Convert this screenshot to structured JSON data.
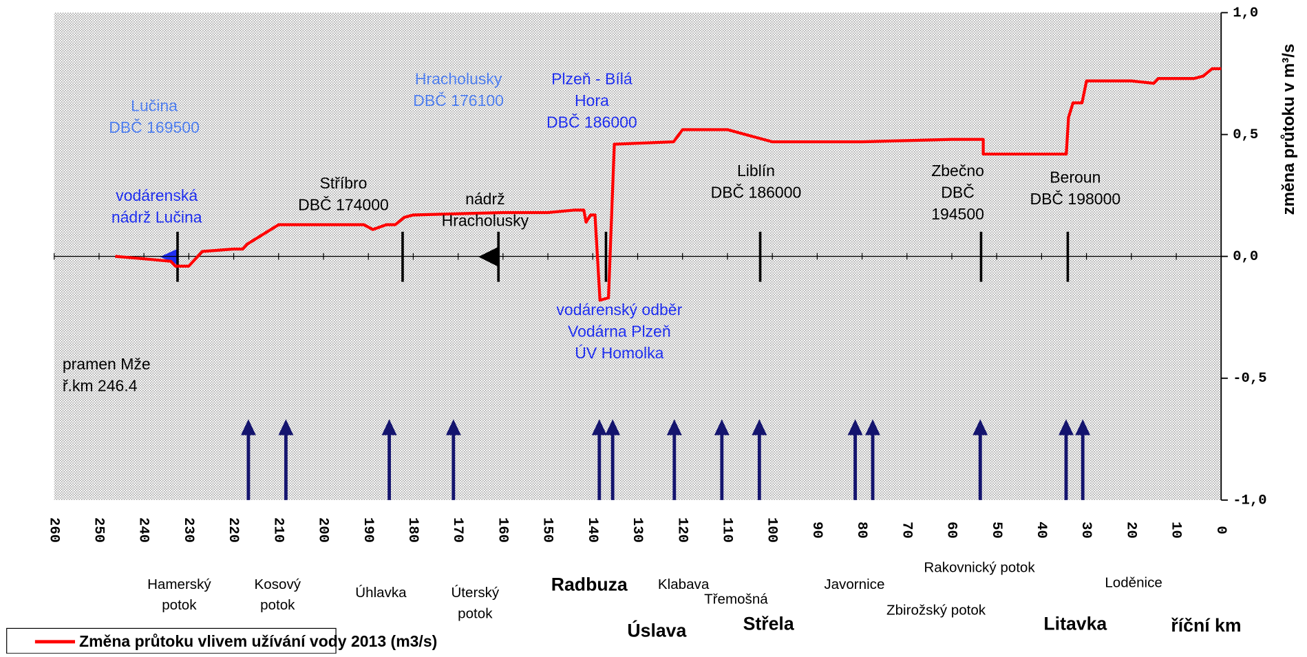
{
  "chart_data": {
    "type": "line",
    "x_label": "říční km",
    "y_label": "změna průtoku v m³/s",
    "xlim": [
      260,
      0
    ],
    "xticks": [
      260,
      250,
      240,
      230,
      220,
      210,
      200,
      190,
      180,
      170,
      160,
      150,
      140,
      130,
      120,
      110,
      100,
      90,
      80,
      70,
      60,
      50,
      40,
      30,
      20,
      10,
      0
    ],
    "ylim": [
      -1,
      1
    ],
    "yticks": [
      {
        "value": 1,
        "label": "1,0"
      },
      {
        "value": 0.5,
        "label": "0,5"
      },
      {
        "value": 0,
        "label": "0,0"
      },
      {
        "value": -0.5,
        "label": "-0,5"
      },
      {
        "value": -1,
        "label": "-1,0"
      }
    ],
    "series": [
      {
        "name": "Změna průtoku vlivem užívání vody 2013 (m3/s)",
        "color": "#ff0000",
        "x": [
          246.4,
          240,
          234,
          233,
          230,
          227,
          220,
          218,
          217,
          210,
          200,
          191,
          189,
          186,
          184,
          182,
          180,
          160,
          150,
          144,
          142,
          141.5,
          140.5,
          139.5,
          138.4,
          136.5,
          135.2,
          122,
          120,
          110,
          100,
          80,
          60,
          53,
          53,
          40,
          34.5,
          34,
          33,
          31,
          30,
          20,
          15,
          14,
          6,
          4,
          2,
          0
        ],
        "values": [
          0.0,
          -0.01,
          -0.02,
          -0.04,
          -0.04,
          0.02,
          0.03,
          0.03,
          0.05,
          0.13,
          0.13,
          0.13,
          0.11,
          0.13,
          0.13,
          0.16,
          0.17,
          0.18,
          0.18,
          0.19,
          0.19,
          0.14,
          0.17,
          0.17,
          -0.18,
          -0.17,
          0.46,
          0.47,
          0.52,
          0.52,
          0.47,
          0.47,
          0.48,
          0.48,
          0.42,
          0.42,
          0.42,
          0.57,
          0.63,
          0.63,
          0.72,
          0.72,
          0.71,
          0.73,
          0.73,
          0.74,
          0.77,
          0.77
        ]
      }
    ],
    "annotations": [
      {
        "lines": [
          "Lučina",
          "DBČ 169500"
        ],
        "color": "#4f7ff0"
      },
      {
        "lines": [
          "vodárenská",
          "nádrž Lučina"
        ],
        "color": "#1f2ff0"
      },
      {
        "lines": [
          "Stříbro",
          "DBČ 174000"
        ],
        "color": "#000000"
      },
      {
        "lines": [
          "nádrž",
          "Hracholusky"
        ],
        "color": "#000000"
      },
      {
        "lines": [
          "Hracholusky",
          "DBČ 176100"
        ],
        "color": "#4f7ff0"
      },
      {
        "lines": [
          "Plzeň - Bílá",
          "Hora",
          "DBČ 186000"
        ],
        "color": "#1f2ff0"
      },
      {
        "lines": [
          "vodárenský odběr",
          "Vodárna Plzeň",
          "ÚV Homolka"
        ],
        "color": "#1f2ff0"
      },
      {
        "lines": [
          "Liblín",
          "DBČ 186000"
        ],
        "color": "#000000"
      },
      {
        "lines": [
          "Zbečno",
          "DBČ",
          "194500"
        ],
        "color": "#000000"
      },
      {
        "lines": [
          "Beroun",
          "DBČ 198000"
        ],
        "color": "#000000"
      },
      {
        "lines": [
          "pramen Mže",
          "ř.km 246.4"
        ],
        "color": "#000000"
      }
    ],
    "tributaries": [
      {
        "lines": [
          "Hamerský",
          "potok"
        ],
        "bold": false
      },
      {
        "lines": [
          "Kosový",
          "potok"
        ],
        "bold": false
      },
      {
        "lines": [
          "Úhlavka"
        ],
        "bold": false
      },
      {
        "lines": [
          "Úterský",
          "potok"
        ],
        "bold": false
      },
      {
        "lines": [
          "Radbuza"
        ],
        "bold": true
      },
      {
        "lines": [
          "Klabava"
        ],
        "bold": false
      },
      {
        "lines": [
          "Třemošná"
        ],
        "bold": false
      },
      {
        "lines": [
          "Javornice"
        ],
        "bold": false
      },
      {
        "lines": [
          "Rakovnický potok"
        ],
        "bold": false
      },
      {
        "lines": [
          "Zbirožský potok"
        ],
        "bold": false
      },
      {
        "lines": [
          "Loděnice"
        ],
        "bold": false
      },
      {
        "lines": [
          "Úslava"
        ],
        "bold": true
      },
      {
        "lines": [
          "Střela"
        ],
        "bold": true
      },
      {
        "lines": [
          "Litavka"
        ],
        "bold": true
      }
    ]
  }
}
